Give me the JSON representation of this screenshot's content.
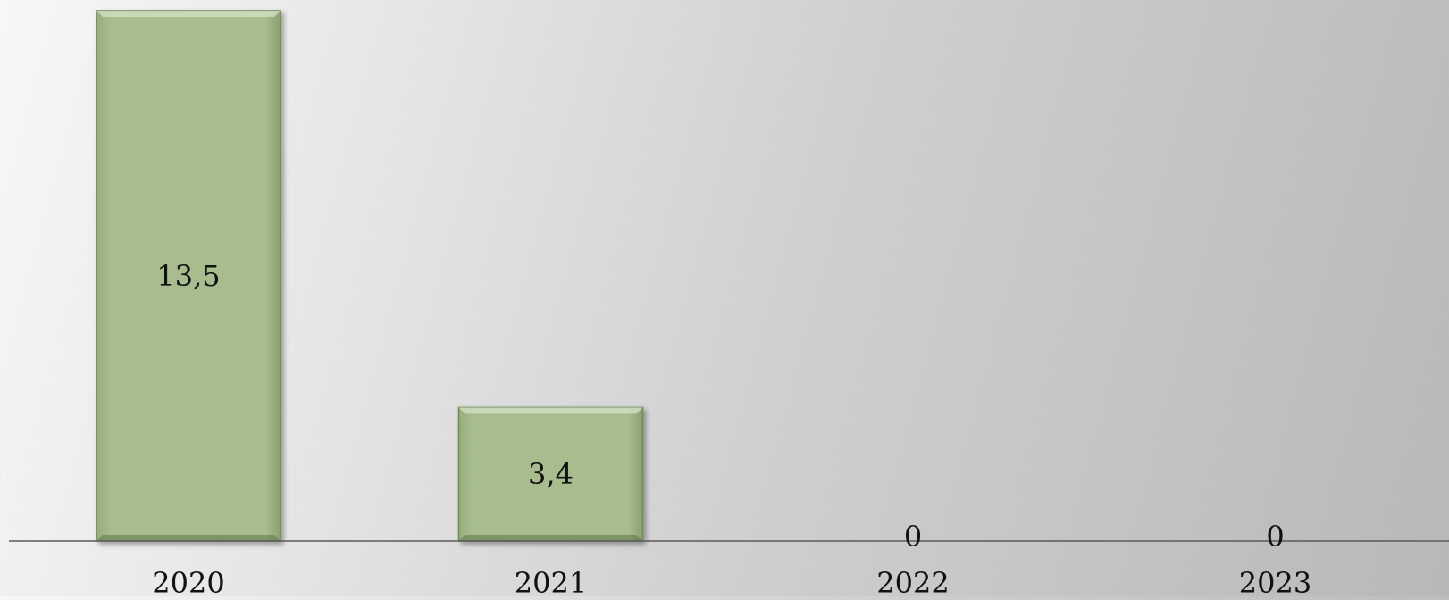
{
  "chart_data": {
    "type": "bar",
    "title": "",
    "xlabel": "",
    "ylabel": "",
    "categories": [
      "2020",
      "2021",
      "2022",
      "2023"
    ],
    "values": [
      13.5,
      3.4,
      0,
      0
    ],
    "data_labels": [
      "13,5",
      "3,4",
      "0",
      "0"
    ],
    "ylim": [
      0,
      13.5
    ],
    "grid": false,
    "legend": "none",
    "bar_color": "#a7bd8e",
    "bar_edge_color": "#6f8a55",
    "axis_color": "#5a5a5a"
  }
}
